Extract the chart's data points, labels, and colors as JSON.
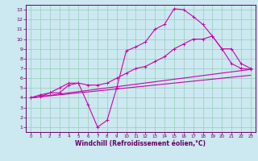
{
  "xlabel": "Windchill (Refroidissement éolien,°C)",
  "background_color": "#cce8f0",
  "grid_color": "#99ccbb",
  "line_color": "#cc00aa",
  "spine_color": "#660066",
  "xlim": [
    -0.5,
    23.5
  ],
  "ylim": [
    0.5,
    13.5
  ],
  "xticks": [
    0,
    1,
    2,
    3,
    4,
    5,
    6,
    7,
    8,
    9,
    10,
    11,
    12,
    13,
    14,
    15,
    16,
    17,
    18,
    19,
    20,
    21,
    22,
    23
  ],
  "yticks": [
    1,
    2,
    3,
    4,
    5,
    6,
    7,
    8,
    9,
    10,
    11,
    12,
    13
  ],
  "line1_x": [
    0,
    1,
    2,
    3,
    4,
    5,
    6,
    7,
    8,
    9,
    10,
    11,
    12,
    13,
    14,
    15,
    16,
    17,
    18,
    19,
    20,
    21,
    22,
    23
  ],
  "line1_y": [
    4.0,
    4.1,
    4.5,
    4.5,
    5.3,
    5.5,
    3.3,
    1.0,
    1.7,
    5.0,
    8.8,
    9.2,
    9.7,
    11.0,
    11.5,
    13.1,
    13.0,
    12.3,
    11.5,
    10.3,
    9.0,
    7.5,
    7.0,
    6.9
  ],
  "line2_x": [
    0,
    1,
    2,
    3,
    4,
    5,
    6,
    7,
    8,
    9,
    10,
    11,
    12,
    13,
    14,
    15,
    16,
    17,
    18,
    19,
    20,
    21,
    22,
    23
  ],
  "line2_y": [
    4.0,
    4.3,
    4.5,
    5.0,
    5.5,
    5.5,
    5.3,
    5.3,
    5.5,
    6.0,
    6.5,
    7.0,
    7.2,
    7.7,
    8.2,
    9.0,
    9.5,
    10.0,
    10.0,
    10.3,
    9.0,
    9.0,
    7.5,
    7.0
  ],
  "line3_x": [
    0,
    23
  ],
  "line3_y": [
    4.0,
    6.9
  ],
  "line4_x": [
    0,
    23
  ],
  "line4_y": [
    4.0,
    6.3
  ]
}
